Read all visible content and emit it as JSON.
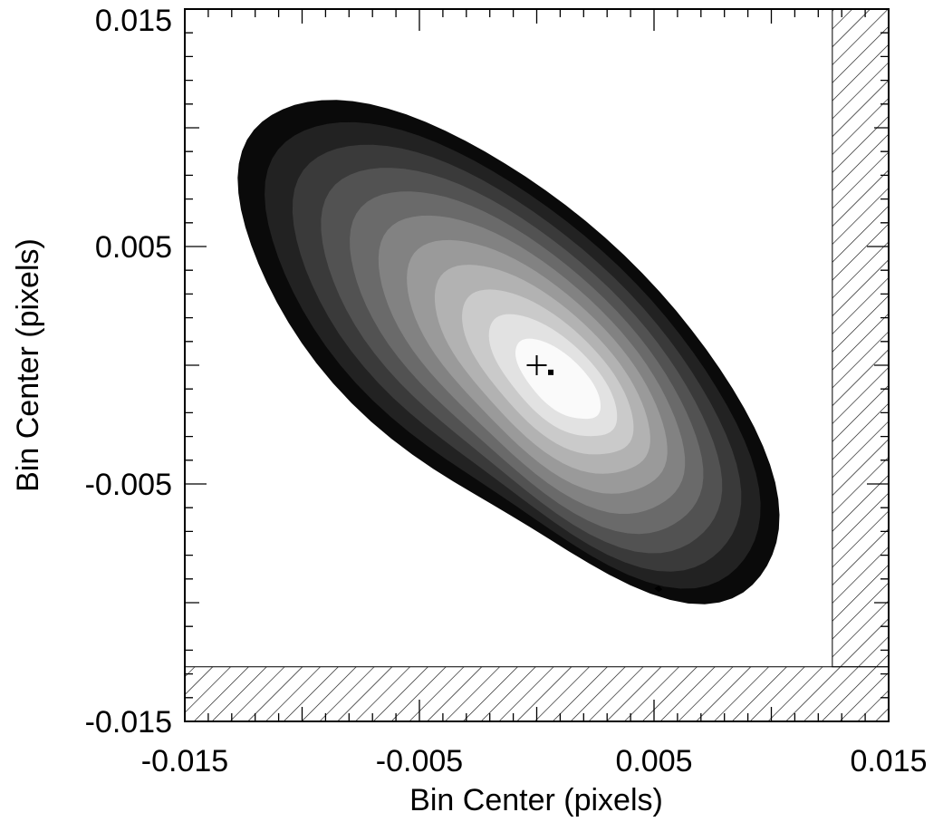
{
  "chart_data": {
    "type": "contour",
    "title": "",
    "xlabel": "Bin Center (pixels)",
    "ylabel": "Bin Center (pixels)",
    "xlim": [
      -0.015,
      0.015
    ],
    "ylim": [
      -0.015,
      0.015
    ],
    "x_ticks": [
      {
        "value": -0.015,
        "label": "-0.015"
      },
      {
        "value": -0.005,
        "label": "-0.005"
      },
      {
        "value": 0.005,
        "label": "0.005"
      },
      {
        "value": 0.015,
        "label": "0.015"
      }
    ],
    "y_ticks": [
      {
        "value": -0.015,
        "label": "-0.015"
      },
      {
        "value": -0.005,
        "label": "-0.005"
      },
      {
        "value": 0.005,
        "label": "0.005"
      },
      {
        "value": 0.015,
        "label": "0.015"
      }
    ],
    "minor_tick_step": 0.001,
    "mid_tick_step": 0.005,
    "grid": false,
    "colormap": "grayscale (black outer to white peak)",
    "contour_levels": 11,
    "distribution": {
      "center": [
        -0.0012,
        0.0008
      ],
      "peak": [
        0.0009,
        -0.0006
      ],
      "orientation_deg": -42,
      "sigma_major": 0.0063,
      "sigma_minor": 0.0028
    },
    "markers": [
      {
        "name": "plus-marker",
        "shape": "plus",
        "x": 0.0,
        "y": 0.0
      },
      {
        "name": "square-marker",
        "shape": "square",
        "x": 0.0006,
        "y": -0.0003
      },
      {
        "name": "small-blob",
        "shape": "diamond",
        "x": 0.0052,
        "y": -0.0094
      }
    ],
    "hatched_regions": [
      {
        "name": "right-strip",
        "x": [
          0.0126,
          0.015
        ],
        "y": [
          -0.0127,
          0.015
        ]
      },
      {
        "name": "bottom-strip",
        "x": [
          -0.015,
          0.015
        ],
        "y": [
          -0.015,
          -0.0127
        ]
      }
    ],
    "colors": {
      "axis": "#000000",
      "hatch": "#000000",
      "background": "#ffffff",
      "marker": "#000000"
    }
  }
}
